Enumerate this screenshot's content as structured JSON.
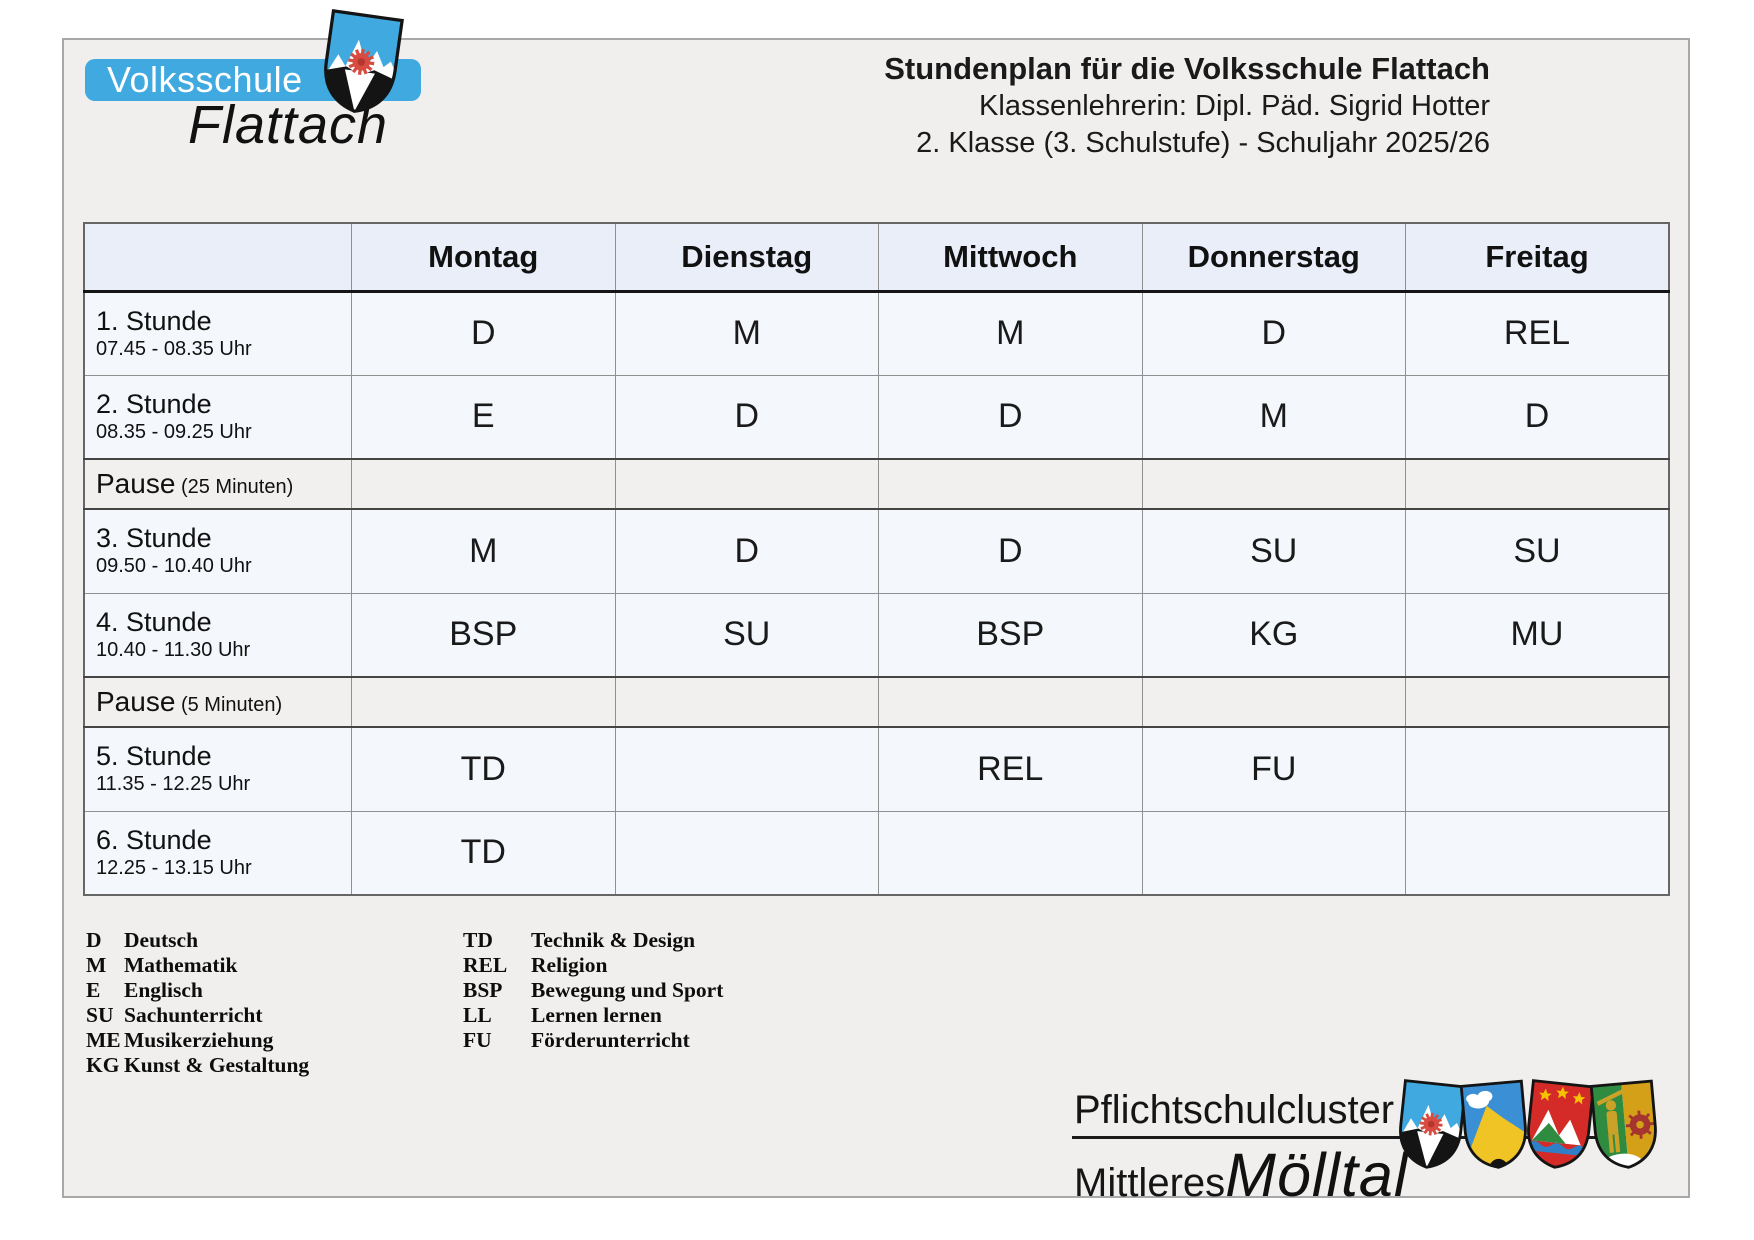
{
  "logo": {
    "school": "Volksschule",
    "place": "Flattach"
  },
  "header": {
    "title": "Stundenplan für die Volksschule Flattach",
    "teacher": "Klassenlehrerin: Dipl. Päd. Sigrid Hotter",
    "class_info": "2. Klasse (3. Schulstufe) - Schuljahr 2025/26"
  },
  "timetable": {
    "days": [
      "Montag",
      "Dienstag",
      "Mittwoch",
      "Donnerstag",
      "Freitag"
    ],
    "rows": [
      {
        "type": "lesson",
        "label": "1. Stunde",
        "time": "07.45 - 08.35 Uhr",
        "cells": [
          "D",
          "M",
          "M",
          "D",
          "REL"
        ]
      },
      {
        "type": "lesson",
        "label": "2. Stunde",
        "time": "08.35 - 09.25 Uhr",
        "cells": [
          "E",
          "D",
          "D",
          "M",
          "D"
        ]
      },
      {
        "type": "pause",
        "label": "Pause",
        "detail": "(25 Minuten)",
        "cells": [
          "",
          "",
          "",
          "",
          ""
        ]
      },
      {
        "type": "lesson",
        "label": "3. Stunde",
        "time": "09.50 - 10.40 Uhr",
        "cells": [
          "M",
          "D",
          "D",
          "SU",
          "SU"
        ]
      },
      {
        "type": "lesson",
        "label": "4. Stunde",
        "time": "10.40 - 11.30 Uhr",
        "cells": [
          "BSP",
          "SU",
          "BSP",
          "KG",
          "MU"
        ]
      },
      {
        "type": "pause",
        "label": "Pause",
        "detail": "(5 Minuten)",
        "cells": [
          "",
          "",
          "",
          "",
          ""
        ]
      },
      {
        "type": "lesson",
        "label": "5. Stunde",
        "time": "11.35 - 12.25 Uhr",
        "cells": [
          "TD",
          "",
          "REL",
          "FU",
          ""
        ]
      },
      {
        "type": "lesson",
        "label": "6. Stunde",
        "time": "12.25 - 13.15 Uhr",
        "cells": [
          "TD",
          "",
          "",
          "",
          ""
        ]
      }
    ]
  },
  "legend": {
    "left": [
      {
        "abbr": "D",
        "label": "Deutsch"
      },
      {
        "abbr": "M",
        "label": "Mathematik"
      },
      {
        "abbr": "E",
        "label": "Englisch"
      },
      {
        "abbr": "SU",
        "label": "Sachunterricht"
      },
      {
        "abbr": "ME",
        "label": "Musikerziehung"
      },
      {
        "abbr": "KG",
        "label": "Kunst & Gestaltung"
      }
    ],
    "right": [
      {
        "abbr": "TD",
        "label": "Technik & Design"
      },
      {
        "abbr": "REL",
        "label": "Religion"
      },
      {
        "abbr": "BSP",
        "label": "Bewegung und Sport"
      },
      {
        "abbr": "LL",
        "label": "Lernen lernen"
      },
      {
        "abbr": "FU",
        "label": "Förderunterricht"
      }
    ]
  },
  "footer": {
    "line1": "Pflichtschulcluster",
    "line2a": "Mittleres",
    "line2b": "Mölltal"
  },
  "icons": {
    "crest": "flattach-crest-icon",
    "shields": [
      "cluster-shield-1",
      "cluster-shield-2",
      "cluster-shield-3",
      "cluster-shield-4"
    ]
  },
  "colors": {
    "banner_blue": "#3FA9E0",
    "crest_red": "#D84B40",
    "page_bg": "#F0EFEE",
    "header_row_bg": "#E9EEF9",
    "cell_bg": "#F4F7FC",
    "pause_row_bg": "#F1F0EE",
    "text": "#1A1A1A",
    "shield_gold": "#F0C424",
    "shield_red": "#D42B28",
    "shield_green": "#2E8B40",
    "shield_blue": "#3B8FD4",
    "wheel_dark_red": "#A5352E"
  }
}
